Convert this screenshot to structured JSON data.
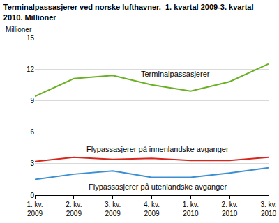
{
  "chart_data": {
    "type": "line",
    "title": "Terminalpassasjerer ved norske lufthavner.  1. kvartal 2009-3. kvartal 2010. Millioner",
    "ylabel": "Millioner",
    "categories": [
      "1. kv. 2009",
      "2. kv. 2009",
      "3. kv. 2009",
      "4. kv. 2009",
      "1. kv. 2010",
      "2. kv. 2010",
      "3. kv. 2010"
    ],
    "series": [
      {
        "name": "Terminalpassasjerer",
        "color": "#6ab023",
        "values": [
          9.4,
          11.1,
          11.4,
          10.5,
          9.9,
          10.8,
          12.5
        ]
      },
      {
        "name": "Flypassasjerer på innenlandske avganger",
        "color": "#d7261e",
        "values": [
          3.2,
          3.6,
          3.4,
          3.5,
          3.3,
          3.3,
          3.6
        ]
      },
      {
        "name": "Flypassasjerer på utenlandske avganger",
        "color": "#3d8fd1",
        "values": [
          1.5,
          2.0,
          2.3,
          1.7,
          1.7,
          2.1,
          2.6
        ]
      }
    ],
    "ylim": [
      0,
      15
    ],
    "yticks": [
      0,
      3,
      6,
      9,
      12,
      15
    ],
    "grid": true
  }
}
